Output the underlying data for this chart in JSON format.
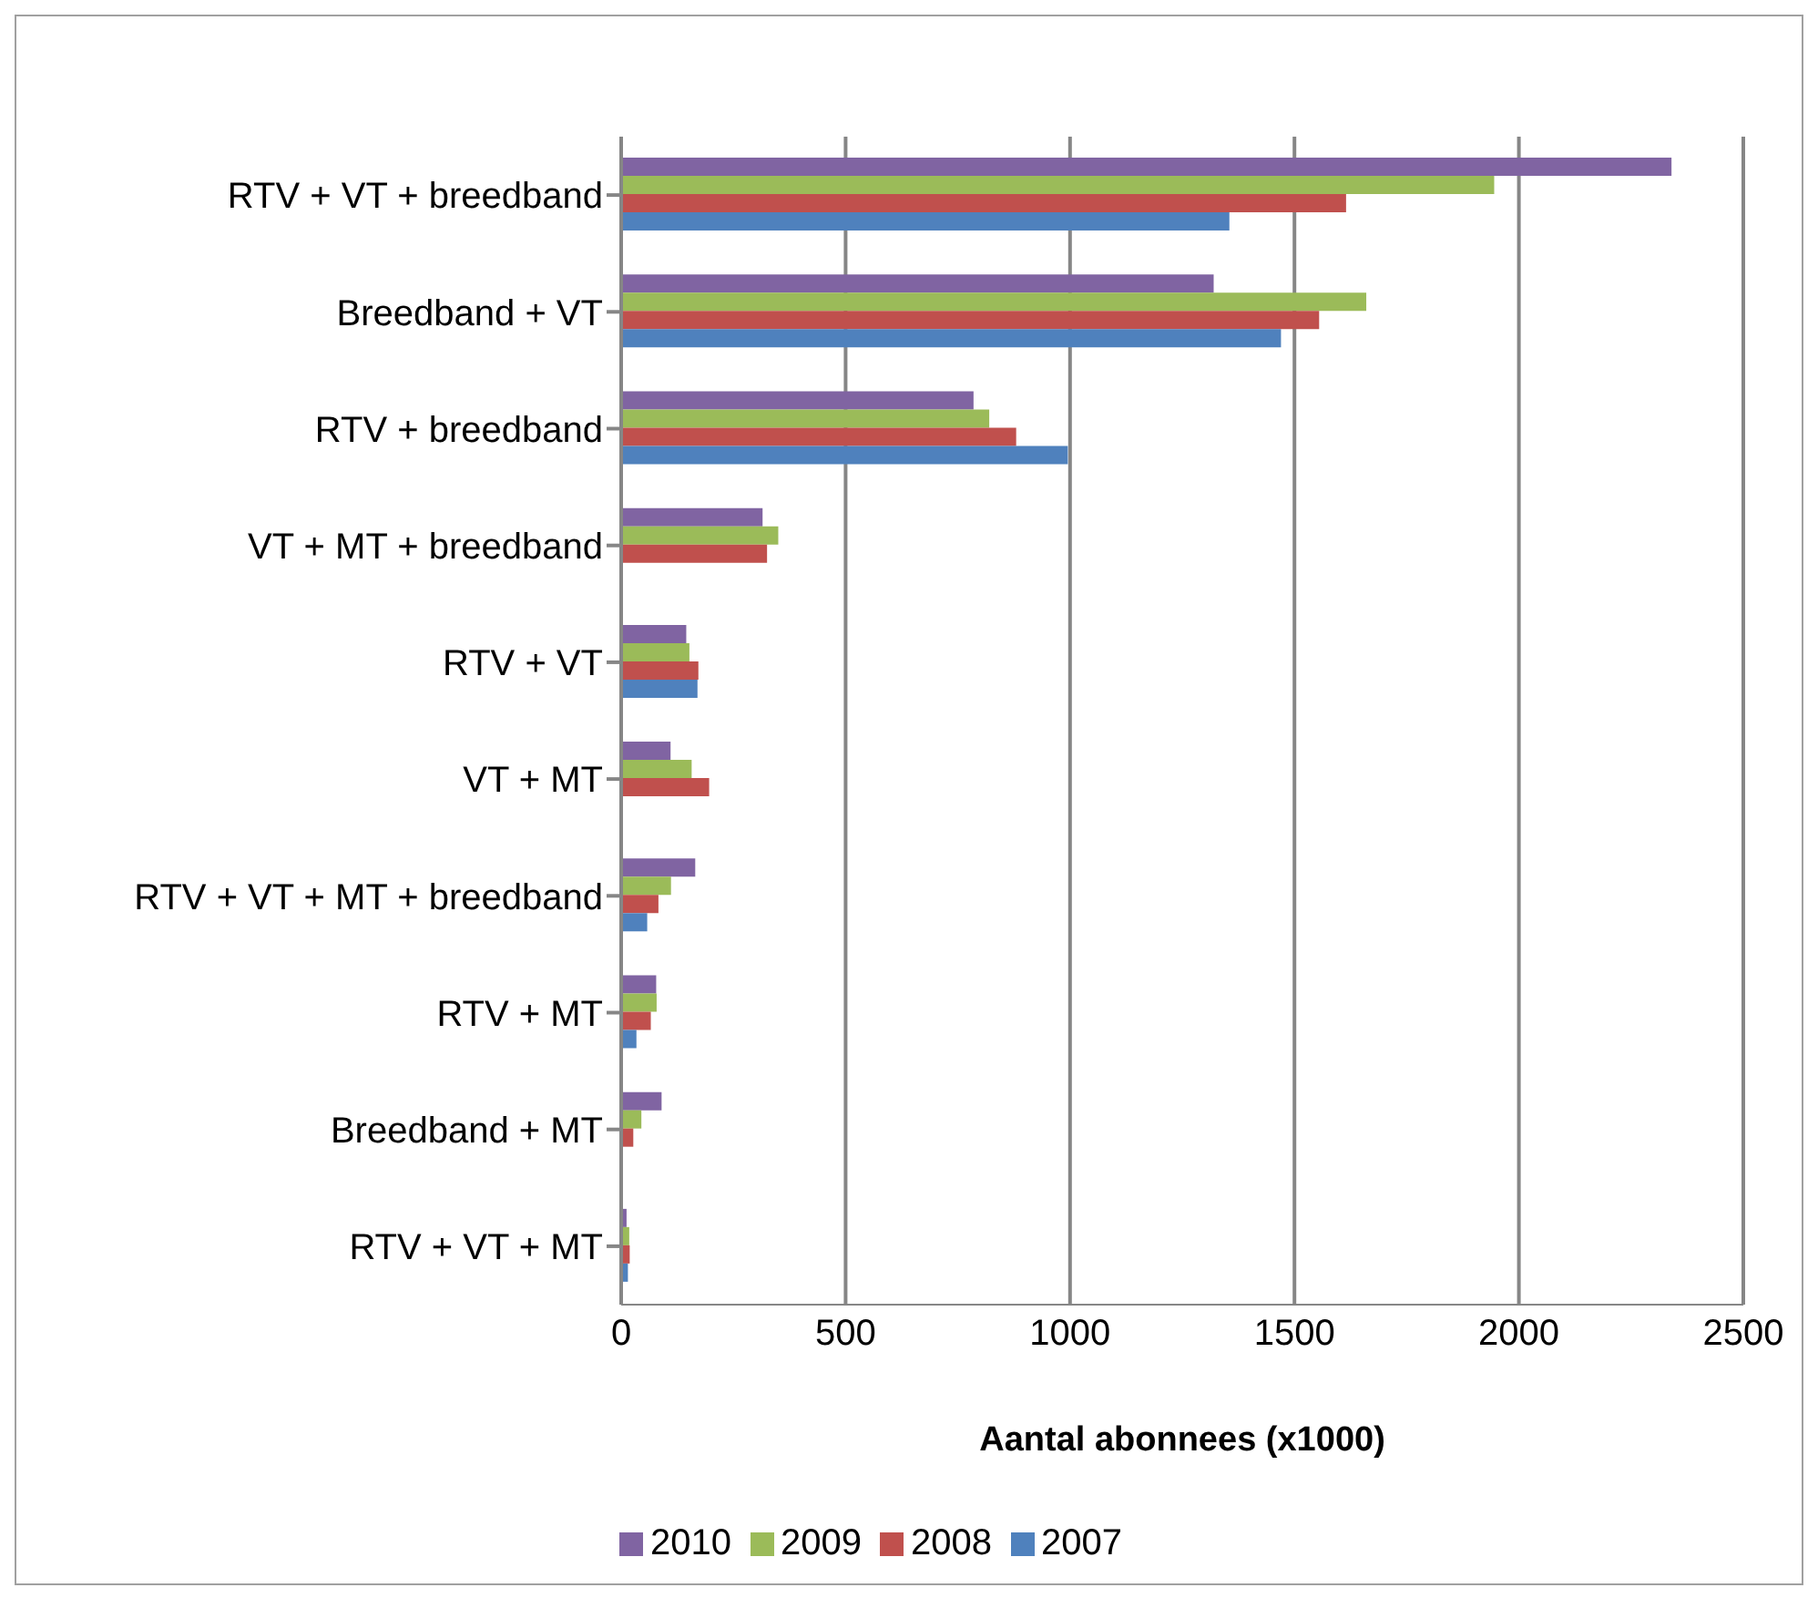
{
  "chart_data": {
    "type": "bar",
    "orientation": "horizontal",
    "xlabel": "Aantal abonnees (x1000)",
    "categories": [
      "RTV + VT + breedband",
      "Breedband + VT",
      "RTV + breedband",
      "VT + MT + breedband",
      "RTV + VT",
      "VT + MT",
      "RTV + VT + MT + breedband",
      "RTV + MT",
      "Breedband + MT",
      "RTV + VT + MT"
    ],
    "series": [
      {
        "name": "2010",
        "color": "#8064a2",
        "values": [
          2340,
          1320,
          785,
          315,
          145,
          110,
          165,
          78,
          90,
          12
        ]
      },
      {
        "name": "2009",
        "color": "#9bbb59",
        "values": [
          1945,
          1660,
          820,
          350,
          152,
          157,
          111,
          79,
          45,
          18
        ]
      },
      {
        "name": "2008",
        "color": "#c0504d",
        "values": [
          1615,
          1555,
          880,
          325,
          172,
          196,
          83,
          66,
          27,
          19
        ]
      },
      {
        "name": "2007",
        "color": "#4f81bd",
        "values": [
          1355,
          1470,
          995,
          null,
          170,
          null,
          58,
          34,
          null,
          15
        ]
      }
    ],
    "xlim": [
      0,
      2500
    ],
    "xticks": [
      0,
      500,
      1000,
      1500,
      2000,
      2500
    ],
    "grid": "x",
    "legend": "bottom"
  }
}
